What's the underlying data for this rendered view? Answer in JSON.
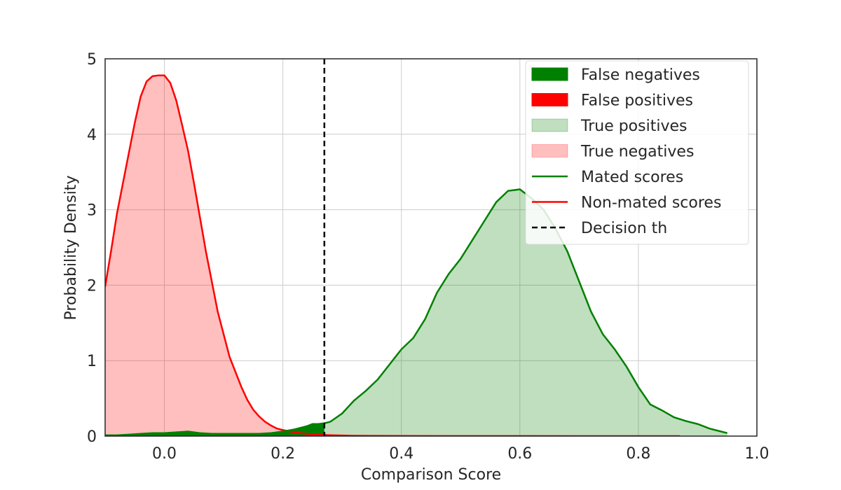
{
  "chart_data": {
    "type": "area",
    "title": "",
    "xlabel": "Comparison Score",
    "ylabel": "Probability Density",
    "xlim": [
      -0.1,
      1.0
    ],
    "ylim": [
      0,
      5
    ],
    "xticks": [
      0.0,
      0.2,
      0.4,
      0.6,
      0.8,
      1.0
    ],
    "xtick_labels": [
      "0.0",
      "0.2",
      "0.4",
      "0.6",
      "0.8",
      "1.0"
    ],
    "yticks": [
      0,
      1,
      2,
      3,
      4,
      5
    ],
    "ytick_labels": [
      "0",
      "1",
      "2",
      "3",
      "4",
      "5"
    ],
    "grid": true,
    "legend_position": "top-right",
    "threshold": 0.27,
    "series": [
      {
        "name": "Mated scores",
        "color": "#008000",
        "x": [
          -0.1,
          -0.08,
          -0.06,
          -0.04,
          -0.02,
          0.0,
          0.02,
          0.04,
          0.06,
          0.08,
          0.1,
          0.12,
          0.14,
          0.16,
          0.18,
          0.2,
          0.22,
          0.24,
          0.25,
          0.26,
          0.27,
          0.28,
          0.3,
          0.32,
          0.34,
          0.36,
          0.38,
          0.4,
          0.42,
          0.44,
          0.46,
          0.48,
          0.5,
          0.52,
          0.54,
          0.56,
          0.58,
          0.6,
          0.62,
          0.64,
          0.66,
          0.68,
          0.7,
          0.72,
          0.74,
          0.76,
          0.78,
          0.8,
          0.82,
          0.84,
          0.86,
          0.88,
          0.9,
          0.92,
          0.95
        ],
        "y": [
          0.01,
          0.01,
          0.02,
          0.03,
          0.04,
          0.04,
          0.05,
          0.06,
          0.04,
          0.03,
          0.03,
          0.03,
          0.03,
          0.03,
          0.04,
          0.06,
          0.09,
          0.13,
          0.16,
          0.16,
          0.17,
          0.19,
          0.3,
          0.47,
          0.6,
          0.75,
          0.95,
          1.15,
          1.3,
          1.55,
          1.9,
          2.15,
          2.35,
          2.6,
          2.85,
          3.1,
          3.25,
          3.27,
          3.15,
          3.0,
          2.75,
          2.45,
          2.05,
          1.65,
          1.35,
          1.15,
          0.92,
          0.65,
          0.42,
          0.34,
          0.25,
          0.2,
          0.16,
          0.1,
          0.04
        ]
      },
      {
        "name": "Non-mated scores",
        "color": "#ff0000",
        "x": [
          -0.1,
          -0.09,
          -0.08,
          -0.07,
          -0.06,
          -0.05,
          -0.04,
          -0.03,
          -0.02,
          -0.01,
          0.0,
          0.01,
          0.02,
          0.03,
          0.04,
          0.05,
          0.06,
          0.07,
          0.08,
          0.09,
          0.1,
          0.11,
          0.12,
          0.13,
          0.14,
          0.15,
          0.16,
          0.17,
          0.18,
          0.19,
          0.2,
          0.22,
          0.24,
          0.26,
          0.27,
          0.28,
          0.3,
          0.32,
          0.35,
          0.4,
          0.5,
          0.6,
          0.7,
          0.8,
          0.87
        ],
        "y": [
          1.98,
          2.45,
          2.95,
          3.35,
          3.75,
          4.15,
          4.5,
          4.7,
          4.77,
          4.78,
          4.78,
          4.68,
          4.45,
          4.12,
          3.78,
          3.35,
          2.9,
          2.45,
          2.05,
          1.65,
          1.35,
          1.05,
          0.85,
          0.65,
          0.48,
          0.35,
          0.26,
          0.19,
          0.14,
          0.1,
          0.08,
          0.05,
          0.03,
          0.02,
          0.015,
          0.012,
          0.008,
          0.005,
          0.004,
          0.002,
          0.001,
          0.001,
          0.0,
          0.0,
          0.0
        ]
      }
    ],
    "legend": [
      {
        "label": "False negatives",
        "kind": "patch",
        "color": "#008000",
        "opacity": 1
      },
      {
        "label": "False positives",
        "kind": "patch",
        "color": "#ff0000",
        "opacity": 1
      },
      {
        "label": "True positives",
        "kind": "patch",
        "color": "#008000",
        "opacity": 0.25
      },
      {
        "label": "True negatives",
        "kind": "patch",
        "color": "#ff0000",
        "opacity": 0.25
      },
      {
        "label": "Mated scores",
        "kind": "line",
        "color": "#008000",
        "dash": false
      },
      {
        "label": "Non-mated scores",
        "kind": "line",
        "color": "#ff0000",
        "dash": false
      },
      {
        "label": "Decision th",
        "kind": "line",
        "color": "#000000",
        "dash": true
      }
    ]
  }
}
